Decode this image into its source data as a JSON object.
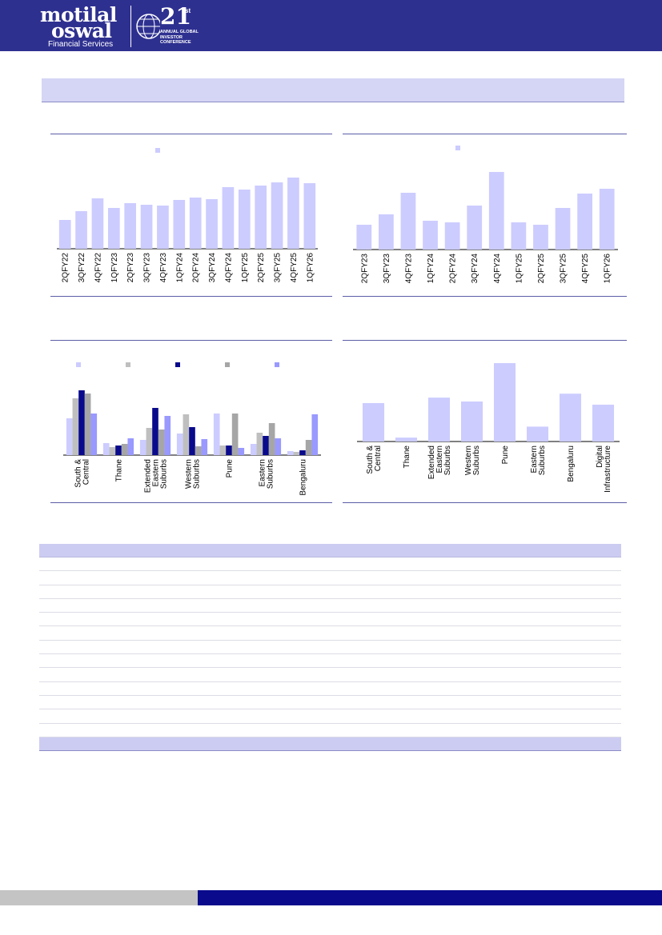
{
  "brand": {
    "logo_line1": "motilal",
    "logo_line2": "oswal",
    "logo_tagline": "Financial Services",
    "conf_number": "21",
    "conf_suffix": "st",
    "conf_text": "ANNUAL GLOBAL INVESTOR CONFERENCE"
  },
  "colors": {
    "header": "#2e3090",
    "bar": "#ccccff",
    "accent": "#0a0a8c",
    "footer_grey": "#c4c4c4"
  },
  "chart_data": [
    {
      "type": "bar",
      "categories": [
        "2QFY22",
        "3QFY22",
        "4QFY22",
        "1QFY23",
        "2QFY23",
        "3QFY23",
        "4QFY23",
        "1QFY24",
        "2QFY24",
        "3QFY24",
        "4QFY24",
        "1QFY25",
        "2QFY25",
        "3QFY25",
        "4QFY25",
        "1QFY26"
      ],
      "values": [
        36,
        47,
        63,
        51,
        57,
        55,
        54,
        61,
        64,
        62,
        77,
        74,
        79,
        83,
        89,
        82
      ],
      "ylim": [
        0,
        100
      ]
    },
    {
      "type": "bar",
      "categories": [
        "2QFY23",
        "3QFY23",
        "4QFY23",
        "1QFY24",
        "2QFY24",
        "3QFY24",
        "4QFY24",
        "1QFY25",
        "2QFY25",
        "3QFY25",
        "4QFY25",
        "1QFY26"
      ],
      "values": [
        31,
        44,
        71,
        36,
        34,
        55,
        97,
        34,
        31,
        52,
        70,
        76
      ],
      "ylim": [
        0,
        100
      ]
    },
    {
      "type": "bar",
      "categories": [
        "South & Central",
        "Thane",
        "Extended Eastern Suburbs",
        "Western Suburbs",
        "Pune",
        "Eastern Suburbs",
        "Bengaluru"
      ],
      "series": [
        {
          "color": "#ccccff",
          "values": [
            46,
            15,
            19,
            27,
            52,
            14,
            5
          ]
        },
        {
          "color": "#bfbfbf",
          "values": [
            71,
            10,
            34,
            51,
            12,
            28,
            4
          ]
        },
        {
          "color": "#0a0a8c",
          "values": [
            81,
            12,
            59,
            35,
            12,
            24,
            6
          ]
        },
        {
          "color": "#a6a6a6",
          "values": [
            77,
            14,
            32,
            11,
            52,
            40,
            19
          ]
        },
        {
          "color": "#9999ff",
          "values": [
            52,
            21,
            49,
            20,
            9,
            21,
            51
          ]
        }
      ],
      "ylim": [
        0,
        100
      ],
      "legend": "top"
    },
    {
      "type": "bar",
      "categories": [
        "South & Central",
        "Thane",
        "Extended Eastern Suburbs",
        "Western Suburbs",
        "Pune",
        "Eastern Suburbs",
        "Bengaluru",
        "Digital Infrastructure"
      ],
      "values": [
        49,
        5,
        56,
        51,
        100,
        19,
        61,
        47
      ],
      "ylim": [
        0,
        100
      ]
    }
  ]
}
